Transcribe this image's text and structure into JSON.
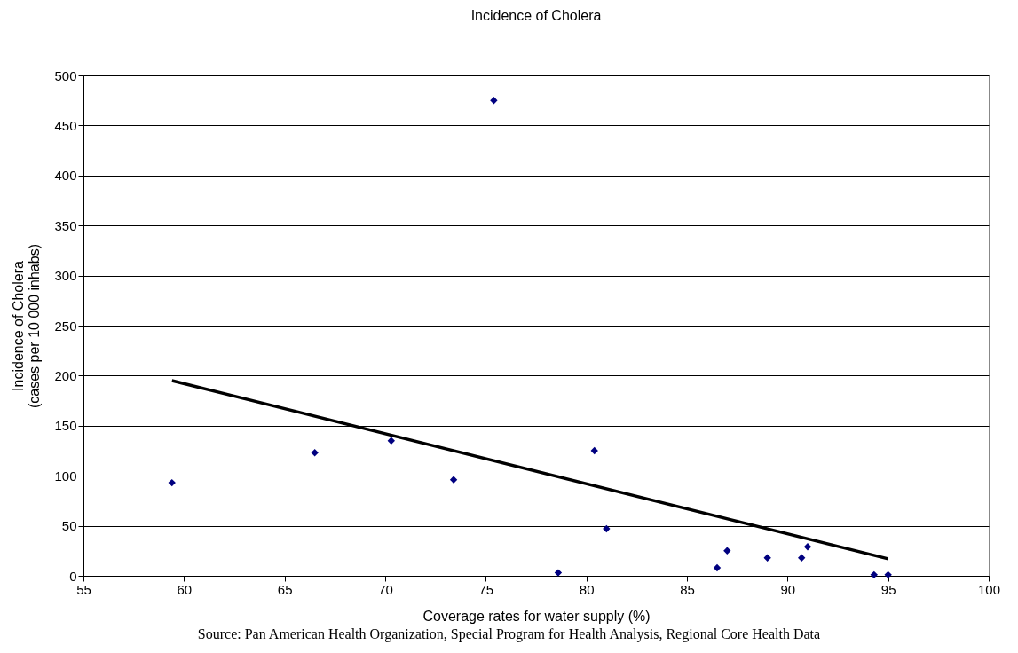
{
  "chart_data": {
    "type": "scatter",
    "title": "Incidence of Cholera",
    "xlabel": "Coverage rates for water supply (%)",
    "ylabel": "Incidence of Cholera\n(cases per 10 000 inhabs)",
    "annotations": [
      "Source: Pan American Health Organization, Special Program for Health Analysis, Regional Core Health Data"
    ],
    "series": [
      {
        "color": "#000080",
        "marker": "diamond",
        "x": [
          59.4,
          66.5,
          70.3,
          73.4,
          75.4,
          78.6,
          80.4,
          81.0,
          86.5,
          87.0,
          89.0,
          90.7,
          91.0,
          94.3,
          95.0
        ],
        "values": [
          93,
          123,
          135,
          96,
          475,
          3,
          125,
          47,
          8,
          25,
          18,
          18,
          29,
          1,
          1
        ]
      },
      {
        "type": "line",
        "color": "#000000",
        "x": [
          59.4,
          95.0
        ],
        "values": [
          195,
          17
        ]
      }
    ],
    "xlim": [
      55,
      100
    ],
    "xticks": [
      55,
      60,
      65,
      70,
      75,
      80,
      85,
      90,
      95,
      100
    ],
    "ylim": [
      0,
      500
    ],
    "yticks": [
      0,
      50,
      100,
      150,
      200,
      250,
      300,
      350,
      400,
      450,
      500
    ],
    "grid": "y"
  }
}
